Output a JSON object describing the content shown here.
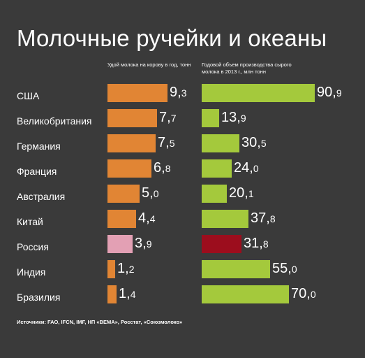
{
  "title": "Молочные ручейки и океаны",
  "source": "Источники: FAO, IFCN, IMF, НП «ВЕМА», Росстат, «Союзмолоко»",
  "colors": {
    "background": "#3a3a3a",
    "yield_bar": "#e18534",
    "production_bar": "#a4c93c",
    "russia_yield_bar": "#e3a0b4",
    "russia_production_bar": "#9c0d1d"
  },
  "chart_data": {
    "type": "bar",
    "orientation": "horizontal",
    "categories": [
      "США",
      "Великобритания",
      "Германия",
      "Франция",
      "Австралия",
      "Китай",
      "Россия",
      "Индия",
      "Бразилия"
    ],
    "series": [
      {
        "name": "Удой молока на корову в год, тонн",
        "values": [
          9.3,
          7.7,
          7.5,
          6.8,
          5.0,
          4.4,
          3.9,
          1.2,
          1.4
        ],
        "labels": [
          [
            "9",
            "3"
          ],
          [
            "7",
            "7"
          ],
          [
            "7",
            "5"
          ],
          [
            "6",
            "8"
          ],
          [
            "5",
            "0"
          ],
          [
            "4",
            "4"
          ],
          [
            "3",
            "9"
          ],
          [
            "1",
            "2"
          ],
          [
            "1",
            "4"
          ]
        ]
      },
      {
        "name": "Годовой объем производства сырого молока в 2013 г., млн тонн",
        "values": [
          90.9,
          13.9,
          30.5,
          24.0,
          20.1,
          37.8,
          31.8,
          55.0,
          70.0
        ],
        "labels": [
          [
            "90",
            "9"
          ],
          [
            "13",
            "9"
          ],
          [
            "30",
            "5"
          ],
          [
            "24",
            "0"
          ],
          [
            "20",
            "1"
          ],
          [
            "37",
            "8"
          ],
          [
            "31",
            "8"
          ],
          [
            "55",
            "0"
          ],
          [
            "70",
            "0"
          ]
        ]
      }
    ],
    "highlight_category": "Россия",
    "grid": false,
    "legend": "none"
  }
}
